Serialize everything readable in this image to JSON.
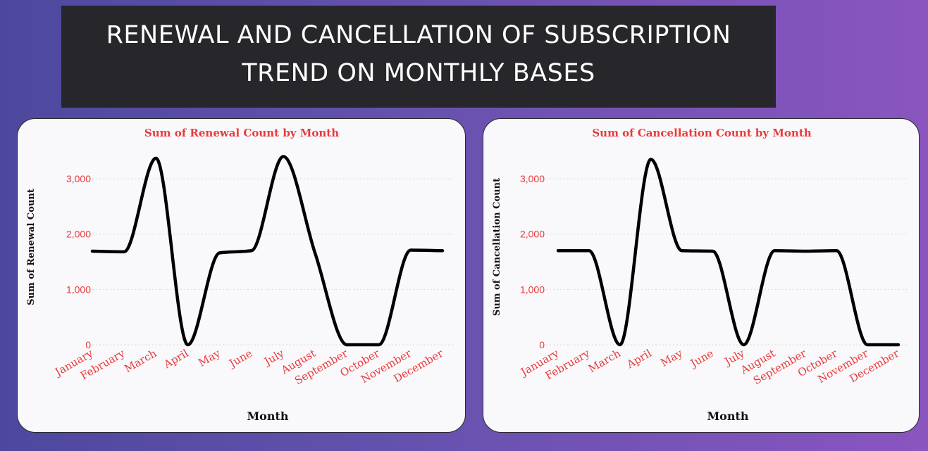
{
  "page": {
    "title": "RENEWAL AND CANCELLATION OF SUBSCRIPTION\nTREND ON MONTHLY BASES"
  },
  "colors": {
    "accent_text": "#e83a3a",
    "line": "#000000",
    "grid": "#d9d9d9"
  },
  "chart_data": [
    {
      "type": "line",
      "title": "Sum of Renewal Count by Month",
      "xlabel": "Month",
      "ylabel": "Sum of Renewal Count",
      "categories": [
        "January",
        "February",
        "March",
        "April",
        "May",
        "June",
        "July",
        "August",
        "September",
        "October",
        "November",
        "December"
      ],
      "values": [
        1690,
        1680,
        3370,
        0,
        1660,
        1700,
        3400,
        1650,
        0,
        0,
        1710,
        1700
      ],
      "y_ticks": [
        0,
        1000,
        2000,
        3000
      ],
      "y_tick_labels": [
        "0",
        "1,000",
        "2,000",
        "3,000"
      ],
      "ylim": [
        0,
        3500
      ],
      "grid": true
    },
    {
      "type": "line",
      "title": "Sum of Cancellation Count by Month",
      "xlabel": "Month",
      "ylabel": "Sum of Cancellation Count",
      "categories": [
        "January",
        "February",
        "March",
        "April",
        "May",
        "June",
        "July",
        "August",
        "September",
        "October",
        "November",
        "December"
      ],
      "values": [
        1700,
        1700,
        0,
        3350,
        1700,
        1690,
        0,
        1700,
        1690,
        1700,
        0,
        0
      ],
      "y_ticks": [
        0,
        1000,
        2000,
        3000
      ],
      "y_tick_labels": [
        "0",
        "1,000",
        "2,000",
        "3,000"
      ],
      "ylim": [
        0,
        3500
      ],
      "grid": true
    }
  ]
}
